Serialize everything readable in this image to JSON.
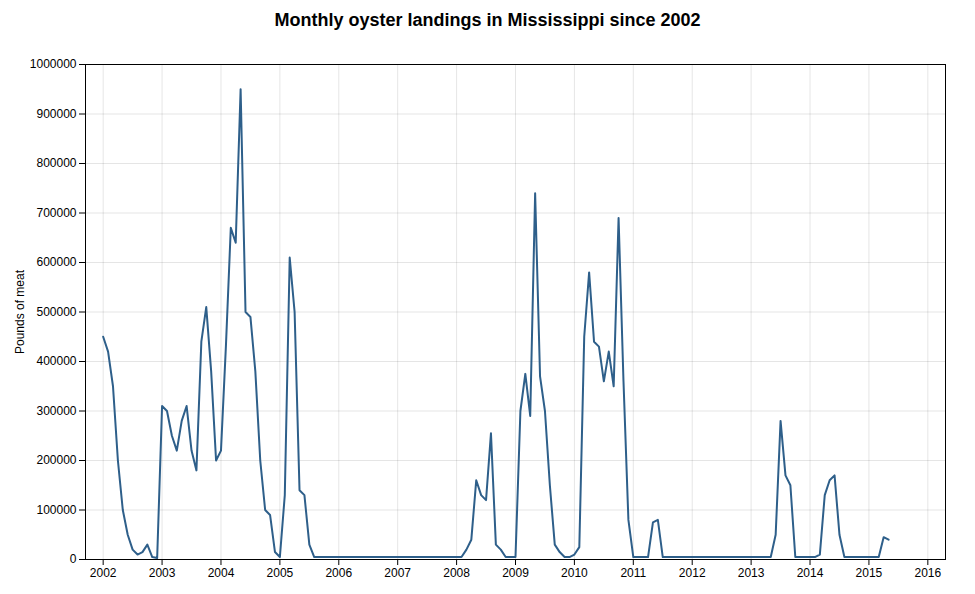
{
  "chart_data": {
    "type": "line",
    "title": "Monthly oyster landings in Mississippi since 2002",
    "ylabel": "Pounds of meat",
    "color": "#2e5f8a",
    "grid": true,
    "xlim": [
      2001.7,
      2016.3
    ],
    "xticks": [
      2002,
      2003,
      2004,
      2005,
      2006,
      2007,
      2008,
      2009,
      2010,
      2011,
      2012,
      2013,
      2014,
      2015,
      2016
    ],
    "ylim": [
      0,
      1000000
    ],
    "yticks": [
      0,
      100000,
      200000,
      300000,
      400000,
      500000,
      600000,
      700000,
      800000,
      900000,
      1000000
    ],
    "x": [
      2002,
      2002.0833333333333,
      2002.1666666666667,
      2002.25,
      2002.3333333333333,
      2002.4166666666667,
      2002.5,
      2002.5833333333333,
      2002.6666666666667,
      2002.75,
      2002.8333333333333,
      2002.9166666666667,
      2003,
      2003.0833333333333,
      2003.1666666666667,
      2003.25,
      2003.3333333333333,
      2003.4166666666667,
      2003.5,
      2003.5833333333333,
      2003.6666666666667,
      2003.75,
      2003.8333333333333,
      2003.9166666666667,
      2004,
      2004.0833333333333,
      2004.1666666666667,
      2004.25,
      2004.3333333333333,
      2004.4166666666667,
      2004.5,
      2004.5833333333333,
      2004.6666666666667,
      2004.75,
      2004.8333333333333,
      2004.9166666666667,
      2005,
      2005.0833333333333,
      2005.1666666666667,
      2005.25,
      2005.3333333333333,
      2005.4166666666667,
      2005.5,
      2005.5833333333333,
      2005.6666666666667,
      2005.75,
      2005.8333333333333,
      2005.9166666666667,
      2006,
      2006.0833333333333,
      2006.1666666666667,
      2006.25,
      2006.3333333333333,
      2006.4166666666667,
      2006.5,
      2006.5833333333333,
      2006.6666666666667,
      2006.75,
      2006.8333333333333,
      2006.9166666666667,
      2007,
      2007.0833333333333,
      2007.1666666666667,
      2007.25,
      2007.3333333333333,
      2007.4166666666667,
      2007.5,
      2007.5833333333333,
      2007.6666666666667,
      2007.75,
      2007.8333333333333,
      2007.9166666666667,
      2008,
      2008.0833333333333,
      2008.1666666666667,
      2008.25,
      2008.3333333333333,
      2008.4166666666667,
      2008.5,
      2008.5833333333333,
      2008.6666666666667,
      2008.75,
      2008.8333333333333,
      2008.9166666666667,
      2009,
      2009.0833333333333,
      2009.1666666666667,
      2009.25,
      2009.3333333333333,
      2009.4166666666667,
      2009.5,
      2009.5833333333333,
      2009.6666666666667,
      2009.75,
      2009.8333333333333,
      2009.9166666666667,
      2010,
      2010.0833333333333,
      2010.1666666666667,
      2010.25,
      2010.3333333333333,
      2010.4166666666667,
      2010.5,
      2010.5833333333333,
      2010.6666666666667,
      2010.75,
      2010.8333333333333,
      2010.9166666666667,
      2011,
      2011.0833333333333,
      2011.1666666666667,
      2011.25,
      2011.3333333333333,
      2011.4166666666667,
      2011.5,
      2011.5833333333333,
      2011.6666666666667,
      2011.75,
      2011.8333333333333,
      2011.9166666666667,
      2012,
      2012.0833333333333,
      2012.1666666666667,
      2012.25,
      2012.3333333333333,
      2012.4166666666667,
      2012.5,
      2012.5833333333333,
      2012.6666666666667,
      2012.75,
      2012.8333333333333,
      2012.9166666666667,
      2013,
      2013.0833333333333,
      2013.1666666666667,
      2013.25,
      2013.3333333333333,
      2013.4166666666667,
      2013.5,
      2013.5833333333333,
      2013.6666666666667,
      2013.75,
      2013.8333333333333,
      2013.9166666666667,
      2014,
      2014.0833333333333,
      2014.1666666666667,
      2014.25,
      2014.3333333333333,
      2014.4166666666667,
      2014.5,
      2014.5833333333333,
      2014.6666666666667,
      2014.75,
      2014.8333333333333,
      2014.9166666666667,
      2015,
      2015.0833333333333,
      2015.1666666666667,
      2015.25,
      2015.3333333333333
    ],
    "values": [
      450000,
      420000,
      350000,
      200000,
      100000,
      50000,
      20000,
      10000,
      15000,
      30000,
      5000,
      3000,
      310000,
      300000,
      250000,
      220000,
      280000,
      310000,
      220000,
      180000,
      440000,
      510000,
      380000,
      200000,
      220000,
      430000,
      670000,
      640000,
      950000,
      500000,
      490000,
      380000,
      200000,
      100000,
      90000,
      15000,
      5000,
      130000,
      610000,
      500000,
      140000,
      130000,
      30000,
      5000,
      5000,
      5000,
      5000,
      5000,
      5000,
      5000,
      5000,
      5000,
      5000,
      5000,
      5000,
      5000,
      5000,
      5000,
      5000,
      5000,
      5000,
      5000,
      5000,
      5000,
      5000,
      5000,
      5000,
      5000,
      5000,
      5000,
      5000,
      5000,
      5000,
      5000,
      20000,
      40000,
      160000,
      130000,
      120000,
      255000,
      30000,
      20000,
      5000,
      5000,
      5000,
      300000,
      375000,
      290000,
      740000,
      370000,
      300000,
      150000,
      30000,
      15000,
      5000,
      5000,
      10000,
      25000,
      450000,
      580000,
      440000,
      430000,
      360000,
      420000,
      350000,
      690000,
      360000,
      80000,
      5000,
      5000,
      5000,
      5000,
      75000,
      80000,
      5000,
      5000,
      5000,
      5000,
      5000,
      5000,
      5000,
      5000,
      5000,
      5000,
      5000,
      5000,
      5000,
      5000,
      5000,
      5000,
      5000,
      5000,
      5000,
      5000,
      5000,
      5000,
      5000,
      50000,
      280000,
      170000,
      150000,
      5000,
      5000,
      5000,
      5000,
      5000,
      10000,
      130000,
      160000,
      170000,
      50000,
      5000,
      5000,
      5000,
      5000,
      5000,
      5000,
      5000,
      5000,
      45000,
      40000
    ]
  }
}
